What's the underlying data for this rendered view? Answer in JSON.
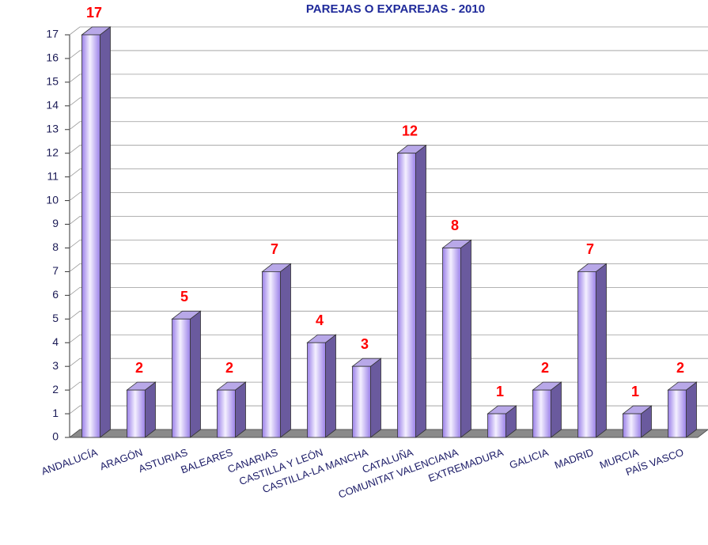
{
  "chart_data": {
    "type": "bar3d",
    "title": "PAREJAS O EXPAREJAS  -  2010",
    "categories": [
      "ANDALUCÍA",
      "ARAGÓN",
      "ASTURIAS",
      "BALEARES",
      "CANARIAS",
      "CASTILLA Y LEÓN",
      "CASTILLA-LA MANCHA",
      "CATALUÑA",
      "COMUNITAT VALENCIANA",
      "EXTREMADURA",
      "GALICIA",
      "MADRID",
      "MURCIA",
      "PAÍS VASCO"
    ],
    "values": [
      17,
      2,
      5,
      2,
      7,
      4,
      3,
      12,
      8,
      1,
      2,
      7,
      1,
      2
    ],
    "color": "#9a80e8",
    "ylim": [
      0,
      17
    ],
    "yticks": [
      0,
      1,
      2,
      3,
      4,
      5,
      6,
      7,
      8,
      9,
      10,
      11,
      12,
      13,
      14,
      15,
      16,
      17
    ],
    "grid": true
  }
}
